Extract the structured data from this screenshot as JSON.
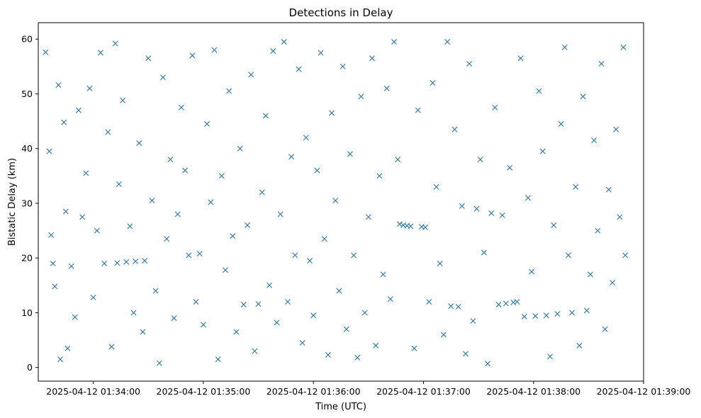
{
  "chart_data": {
    "type": "scatter",
    "title": "Detections in Delay",
    "xlabel": "Time (UTC)",
    "ylabel": "Bistatic Delay (km)",
    "x_axis_type": "time",
    "xlim": [
      "2025-04-12 01:33:30",
      "2025-04-12 01:39:00"
    ],
    "ylim": [
      -2.5,
      63
    ],
    "x_ticks": [
      "2025-04-12 01:34:00",
      "2025-04-12 01:35:00",
      "2025-04-12 01:36:00",
      "2025-04-12 01:37:00",
      "2025-04-12 01:38:00",
      "2025-04-12 01:39:00"
    ],
    "y_ticks": [
      "0",
      "10",
      "20",
      "30",
      "40",
      "50",
      "60"
    ],
    "y_tick_values": [
      0,
      10,
      20,
      30,
      40,
      50,
      60
    ],
    "marker": "x",
    "marker_color": "#1f77b4",
    "grid": false,
    "legend": "none",
    "series": [
      {
        "points": [
          [
            "2025-04-12 01:33:34",
            57.6
          ],
          [
            "2025-04-12 01:33:36",
            39.5
          ],
          [
            "2025-04-12 01:33:37",
            24.2
          ],
          [
            "2025-04-12 01:33:38",
            19.0
          ],
          [
            "2025-04-12 01:33:39",
            14.8
          ],
          [
            "2025-04-12 01:33:41",
            51.6
          ],
          [
            "2025-04-12 01:33:42",
            1.5
          ],
          [
            "2025-04-12 01:33:44",
            44.8
          ],
          [
            "2025-04-12 01:33:45",
            28.5
          ],
          [
            "2025-04-12 01:33:46",
            3.5
          ],
          [
            "2025-04-12 01:33:48",
            18.5
          ],
          [
            "2025-04-12 01:33:50",
            9.2
          ],
          [
            "2025-04-12 01:33:52",
            47.0
          ],
          [
            "2025-04-12 01:33:54",
            27.5
          ],
          [
            "2025-04-12 01:33:56",
            35.5
          ],
          [
            "2025-04-12 01:33:58",
            51.0
          ],
          [
            "2025-04-12 01:34:00",
            12.8
          ],
          [
            "2025-04-12 01:34:02",
            25.0
          ],
          [
            "2025-04-12 01:34:04",
            57.5
          ],
          [
            "2025-04-12 01:34:06",
            19.0
          ],
          [
            "2025-04-12 01:34:08",
            43.0
          ],
          [
            "2025-04-12 01:34:10",
            3.8
          ],
          [
            "2025-04-12 01:34:12",
            59.2
          ],
          [
            "2025-04-12 01:34:13",
            19.1
          ],
          [
            "2025-04-12 01:34:14",
            33.5
          ],
          [
            "2025-04-12 01:34:16",
            48.8
          ],
          [
            "2025-04-12 01:34:18",
            19.3
          ],
          [
            "2025-04-12 01:34:20",
            25.8
          ],
          [
            "2025-04-12 01:34:22",
            10.0
          ],
          [
            "2025-04-12 01:34:23",
            19.4
          ],
          [
            "2025-04-12 01:34:25",
            41.0
          ],
          [
            "2025-04-12 01:34:27",
            6.5
          ],
          [
            "2025-04-12 01:34:28",
            19.5
          ],
          [
            "2025-04-12 01:34:30",
            56.5
          ],
          [
            "2025-04-12 01:34:32",
            30.5
          ],
          [
            "2025-04-12 01:34:34",
            14.0
          ],
          [
            "2025-04-12 01:34:36",
            0.8
          ],
          [
            "2025-04-12 01:34:38",
            53.0
          ],
          [
            "2025-04-12 01:34:40",
            23.5
          ],
          [
            "2025-04-12 01:34:42",
            38.0
          ],
          [
            "2025-04-12 01:34:44",
            9.0
          ],
          [
            "2025-04-12 01:34:46",
            28.0
          ],
          [
            "2025-04-12 01:34:48",
            47.5
          ],
          [
            "2025-04-12 01:34:50",
            36.0
          ],
          [
            "2025-04-12 01:34:52",
            20.5
          ],
          [
            "2025-04-12 01:34:54",
            57.0
          ],
          [
            "2025-04-12 01:34:56",
            12.0
          ],
          [
            "2025-04-12 01:34:58",
            20.8
          ],
          [
            "2025-04-12 01:35:00",
            7.8
          ],
          [
            "2025-04-12 01:35:02",
            44.5
          ],
          [
            "2025-04-12 01:35:04",
            30.2
          ],
          [
            "2025-04-12 01:35:06",
            58.0
          ],
          [
            "2025-04-12 01:35:08",
            1.5
          ],
          [
            "2025-04-12 01:35:10",
            35.0
          ],
          [
            "2025-04-12 01:35:12",
            17.8
          ],
          [
            "2025-04-12 01:35:14",
            50.5
          ],
          [
            "2025-04-12 01:35:16",
            24.0
          ],
          [
            "2025-04-12 01:35:18",
            6.5
          ],
          [
            "2025-04-12 01:35:20",
            40.0
          ],
          [
            "2025-04-12 01:35:22",
            11.5
          ],
          [
            "2025-04-12 01:35:24",
            26.0
          ],
          [
            "2025-04-12 01:35:26",
            53.5
          ],
          [
            "2025-04-12 01:35:28",
            3.0
          ],
          [
            "2025-04-12 01:35:30",
            11.6
          ],
          [
            "2025-04-12 01:35:32",
            32.0
          ],
          [
            "2025-04-12 01:35:34",
            46.0
          ],
          [
            "2025-04-12 01:35:36",
            15.0
          ],
          [
            "2025-04-12 01:35:38",
            57.8
          ],
          [
            "2025-04-12 01:35:40",
            8.2
          ],
          [
            "2025-04-12 01:35:42",
            28.0
          ],
          [
            "2025-04-12 01:35:44",
            59.5
          ],
          [
            "2025-04-12 01:35:46",
            12.0
          ],
          [
            "2025-04-12 01:35:48",
            38.5
          ],
          [
            "2025-04-12 01:35:50",
            20.5
          ],
          [
            "2025-04-12 01:35:52",
            54.5
          ],
          [
            "2025-04-12 01:35:54",
            4.5
          ],
          [
            "2025-04-12 01:35:56",
            42.0
          ],
          [
            "2025-04-12 01:35:58",
            19.5
          ],
          [
            "2025-04-12 01:36:00",
            9.5
          ],
          [
            "2025-04-12 01:36:02",
            36.0
          ],
          [
            "2025-04-12 01:36:04",
            57.5
          ],
          [
            "2025-04-12 01:36:06",
            23.5
          ],
          [
            "2025-04-12 01:36:08",
            2.3
          ],
          [
            "2025-04-12 01:36:10",
            46.5
          ],
          [
            "2025-04-12 01:36:12",
            30.5
          ],
          [
            "2025-04-12 01:36:14",
            14.0
          ],
          [
            "2025-04-12 01:36:16",
            55.0
          ],
          [
            "2025-04-12 01:36:18",
            7.0
          ],
          [
            "2025-04-12 01:36:20",
            39.0
          ],
          [
            "2025-04-12 01:36:22",
            20.5
          ],
          [
            "2025-04-12 01:36:24",
            1.8
          ],
          [
            "2025-04-12 01:36:26",
            49.5
          ],
          [
            "2025-04-12 01:36:28",
            10.0
          ],
          [
            "2025-04-12 01:36:30",
            27.5
          ],
          [
            "2025-04-12 01:36:32",
            56.5
          ],
          [
            "2025-04-12 01:36:34",
            4.0
          ],
          [
            "2025-04-12 01:36:36",
            35.0
          ],
          [
            "2025-04-12 01:36:38",
            17.0
          ],
          [
            "2025-04-12 01:36:40",
            51.0
          ],
          [
            "2025-04-12 01:36:42",
            12.5
          ],
          [
            "2025-04-12 01:36:44",
            59.5
          ],
          [
            "2025-04-12 01:36:46",
            38.0
          ],
          [
            "2025-04-12 01:36:47",
            26.2
          ],
          [
            "2025-04-12 01:36:49",
            26.0
          ],
          [
            "2025-04-12 01:36:51",
            25.9
          ],
          [
            "2025-04-12 01:36:53",
            25.8
          ],
          [
            "2025-04-12 01:36:55",
            3.5
          ],
          [
            "2025-04-12 01:36:57",
            47.0
          ],
          [
            "2025-04-12 01:36:59",
            25.7
          ],
          [
            "2025-04-12 01:37:01",
            25.6
          ],
          [
            "2025-04-12 01:37:03",
            12.0
          ],
          [
            "2025-04-12 01:37:05",
            52.0
          ],
          [
            "2025-04-12 01:37:07",
            33.0
          ],
          [
            "2025-04-12 01:37:09",
            19.0
          ],
          [
            "2025-04-12 01:37:11",
            6.0
          ],
          [
            "2025-04-12 01:37:13",
            59.5
          ],
          [
            "2025-04-12 01:37:15",
            11.2
          ],
          [
            "2025-04-12 01:37:17",
            43.5
          ],
          [
            "2025-04-12 01:37:19",
            11.1
          ],
          [
            "2025-04-12 01:37:21",
            29.5
          ],
          [
            "2025-04-12 01:37:23",
            2.5
          ],
          [
            "2025-04-12 01:37:25",
            55.5
          ],
          [
            "2025-04-12 01:37:27",
            8.5
          ],
          [
            "2025-04-12 01:37:29",
            29.0
          ],
          [
            "2025-04-12 01:37:31",
            38.0
          ],
          [
            "2025-04-12 01:37:33",
            21.0
          ],
          [
            "2025-04-12 01:37:35",
            0.7
          ],
          [
            "2025-04-12 01:37:37",
            28.2
          ],
          [
            "2025-04-12 01:37:39",
            47.5
          ],
          [
            "2025-04-12 01:37:41",
            11.5
          ],
          [
            "2025-04-12 01:37:43",
            27.8
          ],
          [
            "2025-04-12 01:37:45",
            11.7
          ],
          [
            "2025-04-12 01:37:47",
            36.5
          ],
          [
            "2025-04-12 01:37:49",
            11.9
          ],
          [
            "2025-04-12 01:37:51",
            12.0
          ],
          [
            "2025-04-12 01:37:53",
            56.5
          ],
          [
            "2025-04-12 01:37:55",
            9.3
          ],
          [
            "2025-04-12 01:37:57",
            31.0
          ],
          [
            "2025-04-12 01:37:59",
            17.5
          ],
          [
            "2025-04-12 01:38:01",
            9.4
          ],
          [
            "2025-04-12 01:38:03",
            50.5
          ],
          [
            "2025-04-12 01:38:05",
            39.5
          ],
          [
            "2025-04-12 01:38:07",
            9.5
          ],
          [
            "2025-04-12 01:38:09",
            2.0
          ],
          [
            "2025-04-12 01:38:11",
            26.0
          ],
          [
            "2025-04-12 01:38:13",
            9.8
          ],
          [
            "2025-04-12 01:38:15",
            44.5
          ],
          [
            "2025-04-12 01:38:17",
            58.5
          ],
          [
            "2025-04-12 01:38:19",
            20.5
          ],
          [
            "2025-04-12 01:38:21",
            10.0
          ],
          [
            "2025-04-12 01:38:23",
            33.0
          ],
          [
            "2025-04-12 01:38:25",
            4.0
          ],
          [
            "2025-04-12 01:38:27",
            49.5
          ],
          [
            "2025-04-12 01:38:29",
            10.4
          ],
          [
            "2025-04-12 01:38:31",
            17.0
          ],
          [
            "2025-04-12 01:38:33",
            41.5
          ],
          [
            "2025-04-12 01:38:35",
            25.0
          ],
          [
            "2025-04-12 01:38:37",
            55.5
          ],
          [
            "2025-04-12 01:38:39",
            7.0
          ],
          [
            "2025-04-12 01:38:41",
            32.5
          ],
          [
            "2025-04-12 01:38:43",
            15.5
          ],
          [
            "2025-04-12 01:38:45",
            43.5
          ],
          [
            "2025-04-12 01:38:47",
            27.5
          ],
          [
            "2025-04-12 01:38:49",
            58.5
          ],
          [
            "2025-04-12 01:38:50",
            20.5
          ]
        ]
      }
    ]
  }
}
